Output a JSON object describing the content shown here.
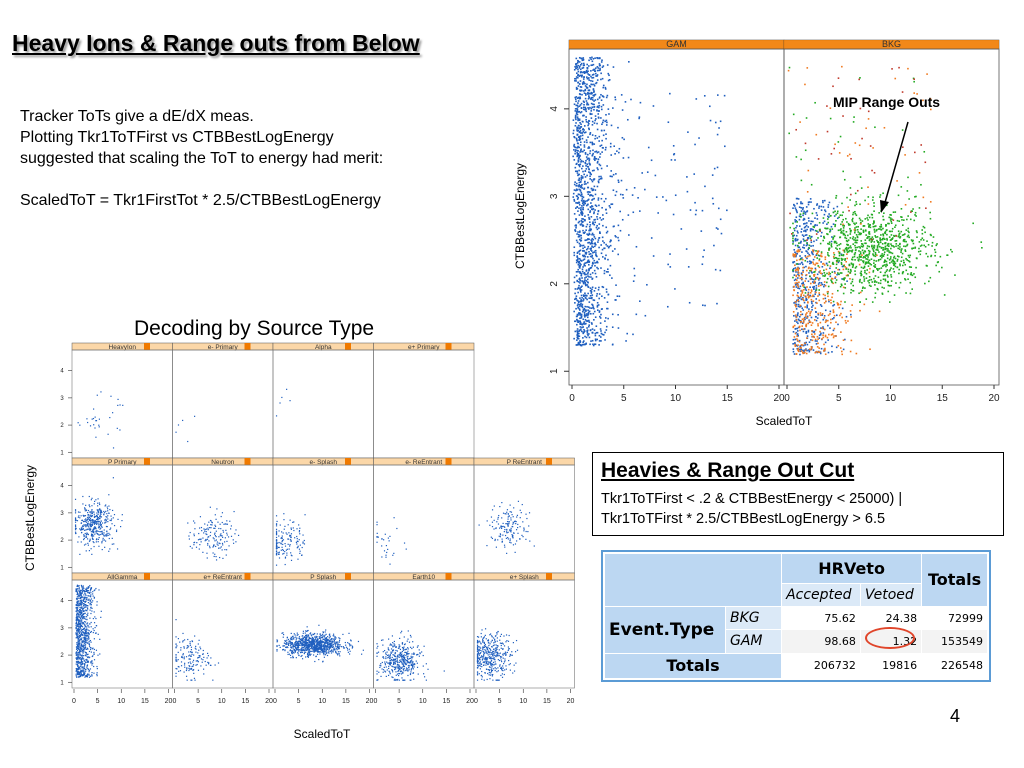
{
  "slide": {
    "title": "Heavy Ions & Range outs from Below",
    "intro_lines": [
      "Tracker ToTs give  a dE/dX meas.",
      "Plotting Tkr1ToTFirst vs CTBBestLogEnergy",
      "suggested that scaling the ToT to energy had merit:",
      "",
      "ScaledToT = Tkr1FirstTot * 2.5/CTBBestLogEnergy"
    ],
    "decoding_heading": "Decoding by Source Type",
    "page_number": "4"
  },
  "cut_box": {
    "title": "Heavies & Range Out Cut",
    "line1": "Tkr1ToTFirst < .2 & CTBBestEnergy < 25000) |",
    "line2": "Tkr1ToTFirst * 2.5/CTBBestLogEnergy > 6.5"
  },
  "hrveto_table": {
    "group_header": "HRVeto",
    "totals_header": "Totals",
    "sub_headers": [
      "Accepted",
      "Vetoed"
    ],
    "row_group_label": "Event.Type",
    "rows": [
      {
        "label": "BKG",
        "accepted": "75.62",
        "vetoed": "24.38",
        "total": "72999"
      },
      {
        "label": "GAM",
        "accepted": "98.68",
        "vetoed": "1.32",
        "total": "153549"
      }
    ],
    "totals_row": {
      "label": "Totals",
      "accepted": "206732",
      "vetoed": "19816",
      "total": "226548"
    },
    "highlight_color": "#e0452a"
  },
  "colors": {
    "point_blue": "#1f5fbf",
    "point_green": "#22aa22",
    "point_orange": "#f07a20",
    "strip_orange": "#f07a00",
    "strip_light": "#fbd7a8"
  },
  "chart_data": [
    {
      "type": "scatter",
      "panels": [
        "GAM",
        "BKG"
      ],
      "xlabel": "ScaledToT",
      "ylabel": "CTBBestLogEnergy",
      "annotation": "MIP Range Outs",
      "xlim": [
        0,
        20
      ],
      "ylim": [
        0.9,
        4.65
      ],
      "x_ticks": [
        "0",
        "5",
        "10",
        "15",
        "20"
      ],
      "y_ticks": [
        "1",
        "2",
        "3",
        "4"
      ],
      "series_description": [
        {
          "panel": "GAM",
          "color": "blue",
          "x_range": [
            0,
            4
          ],
          "y_range": [
            1.3,
            4.6
          ]
        },
        {
          "panel": "BKG",
          "color": "green",
          "x_range": [
            1,
            15
          ],
          "y_range": [
            1.9,
            3.2
          ],
          "center": [
            8,
            2.4
          ]
        },
        {
          "panel": "BKG",
          "color": "blue",
          "x_range": [
            0,
            6
          ],
          "y_range": [
            1.2,
            3.0
          ]
        },
        {
          "panel": "BKG",
          "color": "orange",
          "x_range": [
            0,
            10
          ],
          "y_range": [
            1.2,
            2.4
          ]
        }
      ]
    },
    {
      "type": "scatter",
      "layout": "5x3 trellis",
      "xlabel": "ScaledToT",
      "ylabel": "CTBBestLogEnergy",
      "xlim": [
        0,
        20
      ],
      "ylim": [
        0.9,
        4.65
      ],
      "x_ticks": [
        "0",
        "5",
        "10",
        "15",
        "20"
      ],
      "y_ticks": [
        "1",
        "2",
        "3",
        "4"
      ],
      "panels": [
        {
          "name": "HeavyIon",
          "row": 0,
          "col": 0,
          "density": "sparse",
          "center": [
            5,
            2.3
          ]
        },
        {
          "name": "e- Primary",
          "row": 0,
          "col": 1,
          "density": "very sparse",
          "center": [
            2,
            2.0
          ]
        },
        {
          "name": "Alpha",
          "row": 0,
          "col": 2,
          "density": "very sparse",
          "center": [
            2,
            3.2
          ]
        },
        {
          "name": "e+ Primary",
          "row": 0,
          "col": 3,
          "density": "empty"
        },
        {
          "name": "P Primary",
          "row": 1,
          "col": 0,
          "density": "dense",
          "center": [
            4,
            2.6
          ]
        },
        {
          "name": "Neutron",
          "row": 1,
          "col": 1,
          "density": "medium",
          "center": [
            8,
            2.2
          ]
        },
        {
          "name": "e- Splash",
          "row": 1,
          "col": 2,
          "density": "medium",
          "center": [
            2,
            2.0
          ]
        },
        {
          "name": "e- ReEntrant",
          "row": 1,
          "col": 3,
          "density": "sparse",
          "center": [
            2,
            2.0
          ]
        },
        {
          "name": "P ReEntrant",
          "row": 1,
          "col": 4,
          "density": "medium",
          "center": [
            7,
            2.5
          ]
        },
        {
          "name": "AllGamma",
          "row": 2,
          "col": 0,
          "density": "very dense",
          "center": [
            2,
            2.8
          ]
        },
        {
          "name": "e+ ReEntrant",
          "row": 2,
          "col": 1,
          "density": "medium",
          "center": [
            3,
            1.9
          ]
        },
        {
          "name": "P Splash",
          "row": 2,
          "col": 2,
          "density": "very dense",
          "center": [
            8,
            2.4
          ]
        },
        {
          "name": "Earth10",
          "row": 2,
          "col": 3,
          "density": "dense",
          "center": [
            5,
            1.8
          ]
        },
        {
          "name": "e+ Splash",
          "row": 2,
          "col": 4,
          "density": "dense",
          "center": [
            3,
            2.0
          ]
        }
      ]
    }
  ]
}
